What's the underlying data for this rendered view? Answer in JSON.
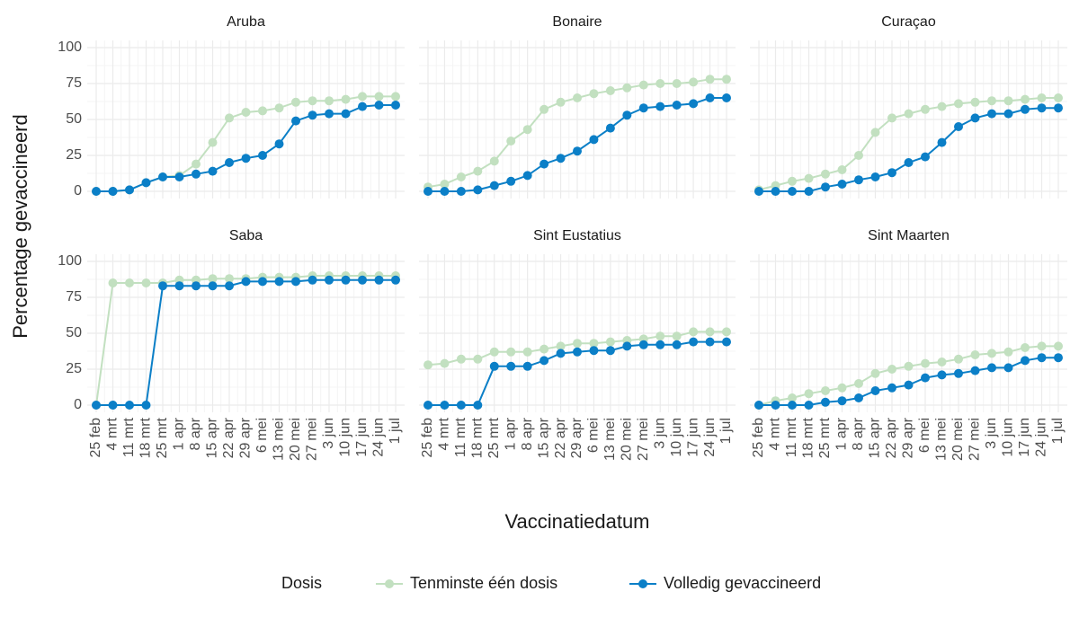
{
  "y_label": "Percentage gevaccineerd",
  "x_label": "Vaccinatiedatum",
  "legend_title": "Dosis",
  "chart_data": [
    {
      "type": "line",
      "title": "Aruba",
      "categories": [
        "25 feb",
        "4 mrt",
        "11 mrt",
        "18 mrt",
        "25 mrt",
        "1 apr",
        "8 apr",
        "15 apr",
        "22 apr",
        "29 apr",
        "6 mei",
        "13 mei",
        "20 mei",
        "27 mei",
        "3 jun",
        "10 jun",
        "17 jun",
        "24 jun",
        "1 jul"
      ],
      "series": [
        {
          "name": "Tenminste één dosis",
          "color": "#c2e0c0",
          "values": [
            0,
            0,
            1,
            6,
            10,
            11,
            19,
            34,
            51,
            55,
            56,
            58,
            62,
            63,
            63,
            64,
            66,
            66,
            66
          ]
        },
        {
          "name": "Volledig gevaccineerd",
          "color": "#0b7fc7",
          "values": [
            0,
            0,
            1,
            6,
            10,
            10,
            12,
            14,
            20,
            23,
            25,
            33,
            49,
            53,
            54,
            54,
            59,
            60,
            60
          ]
        }
      ],
      "ylim": [
        -5,
        105
      ],
      "yticks": [
        0,
        25,
        50,
        75,
        100
      ],
      "grid": true
    },
    {
      "type": "line",
      "title": "Bonaire",
      "categories": [
        "25 feb",
        "4 mrt",
        "11 mrt",
        "18 mrt",
        "25 mrt",
        "1 apr",
        "8 apr",
        "15 apr",
        "22 apr",
        "29 apr",
        "6 mei",
        "13 mei",
        "20 mei",
        "27 mei",
        "3 jun",
        "10 jun",
        "17 jun",
        "24 jun",
        "1 jul"
      ],
      "series": [
        {
          "name": "Tenminste één dosis",
          "color": "#c2e0c0",
          "values": [
            3,
            5,
            10,
            14,
            21,
            35,
            43,
            57,
            62,
            65,
            68,
            70,
            72,
            74,
            75,
            75,
            76,
            78,
            78
          ]
        },
        {
          "name": "Volledig gevaccineerd",
          "color": "#0b7fc7",
          "values": [
            0,
            0,
            0,
            1,
            4,
            7,
            11,
            19,
            23,
            28,
            36,
            44,
            53,
            58,
            59,
            60,
            61,
            65,
            65
          ]
        }
      ],
      "ylim": [
        -5,
        105
      ],
      "yticks": [
        0,
        25,
        50,
        75,
        100
      ],
      "grid": true
    },
    {
      "type": "line",
      "title": "Curaçao",
      "categories": [
        "25 feb",
        "4 mrt",
        "11 mrt",
        "18 mrt",
        "25 mrt",
        "1 apr",
        "8 apr",
        "15 apr",
        "22 apr",
        "29 apr",
        "6 mei",
        "13 mei",
        "20 mei",
        "27 mei",
        "3 jun",
        "10 jun",
        "17 jun",
        "24 jun",
        "1 jul"
      ],
      "series": [
        {
          "name": "Tenminste één dosis",
          "color": "#c2e0c0",
          "values": [
            1,
            4,
            7,
            9,
            12,
            15,
            25,
            41,
            51,
            54,
            57,
            59,
            61,
            62,
            63,
            63,
            64,
            65,
            65
          ]
        },
        {
          "name": "Volledig gevaccineerd",
          "color": "#0b7fc7",
          "values": [
            0,
            0,
            0,
            0,
            3,
            5,
            8,
            10,
            13,
            20,
            24,
            34,
            45,
            51,
            54,
            54,
            57,
            58,
            58
          ]
        }
      ],
      "ylim": [
        -5,
        105
      ],
      "yticks": [
        0,
        25,
        50,
        75,
        100
      ],
      "grid": true
    },
    {
      "type": "line",
      "title": "Saba",
      "categories": [
        "25 feb",
        "4 mrt",
        "11 mrt",
        "18 mrt",
        "25 mrt",
        "1 apr",
        "8 apr",
        "15 apr",
        "22 apr",
        "29 apr",
        "6 mei",
        "13 mei",
        "20 mei",
        "27 mei",
        "3 jun",
        "10 jun",
        "17 jun",
        "24 jun",
        "1 jul"
      ],
      "series": [
        {
          "name": "Tenminste één dosis",
          "color": "#c2e0c0",
          "values": [
            0,
            85,
            85,
            85,
            85,
            87,
            87,
            88,
            88,
            88,
            89,
            89,
            89,
            90,
            90,
            90,
            90,
            90,
            90
          ]
        },
        {
          "name": "Volledig gevaccineerd",
          "color": "#0b7fc7",
          "values": [
            0,
            0,
            0,
            0,
            83,
            83,
            83,
            83,
            83,
            86,
            86,
            86,
            86,
            87,
            87,
            87,
            87,
            87,
            87
          ]
        }
      ],
      "ylim": [
        -5,
        105
      ],
      "yticks": [
        0,
        25,
        50,
        75,
        100
      ],
      "grid": true
    },
    {
      "type": "line",
      "title": "Sint Eustatius",
      "categories": [
        "25 feb",
        "4 mrt",
        "11 mrt",
        "18 mrt",
        "25 mrt",
        "1 apr",
        "8 apr",
        "15 apr",
        "22 apr",
        "29 apr",
        "6 mei",
        "13 mei",
        "20 mei",
        "27 mei",
        "3 jun",
        "10 jun",
        "17 jun",
        "24 jun",
        "1 jul"
      ],
      "series": [
        {
          "name": "Tenminste één dosis",
          "color": "#c2e0c0",
          "values": [
            28,
            29,
            32,
            32,
            37,
            37,
            37,
            39,
            41,
            43,
            43,
            44,
            45,
            46,
            48,
            48,
            51,
            51,
            51
          ]
        },
        {
          "name": "Volledig gevaccineerd",
          "color": "#0b7fc7",
          "values": [
            0,
            0,
            0,
            0,
            27,
            27,
            27,
            31,
            36,
            37,
            38,
            38,
            41,
            42,
            42,
            42,
            44,
            44,
            44
          ]
        }
      ],
      "ylim": [
        -5,
        105
      ],
      "yticks": [
        0,
        25,
        50,
        75,
        100
      ],
      "grid": true
    },
    {
      "type": "line",
      "title": "Sint Maarten",
      "categories": [
        "25 feb",
        "4 mrt",
        "11 mrt",
        "18 mrt",
        "25 mrt",
        "1 apr",
        "8 apr",
        "15 apr",
        "22 apr",
        "29 apr",
        "6 mei",
        "13 mei",
        "20 mei",
        "27 mei",
        "3 jun",
        "10 jun",
        "17 jun",
        "24 jun",
        "1 jul"
      ],
      "series": [
        {
          "name": "Tenminste één dosis",
          "color": "#c2e0c0",
          "values": [
            0,
            3,
            5,
            8,
            10,
            12,
            15,
            22,
            25,
            27,
            29,
            30,
            32,
            35,
            36,
            37,
            40,
            41,
            41
          ]
        },
        {
          "name": "Volledig gevaccineerd",
          "color": "#0b7fc7",
          "values": [
            0,
            0,
            0,
            0,
            2,
            3,
            5,
            10,
            12,
            14,
            19,
            21,
            22,
            24,
            26,
            26,
            31,
            33,
            33
          ]
        }
      ],
      "ylim": [
        -5,
        105
      ],
      "yticks": [
        0,
        25,
        50,
        75,
        100
      ],
      "grid": true
    }
  ]
}
